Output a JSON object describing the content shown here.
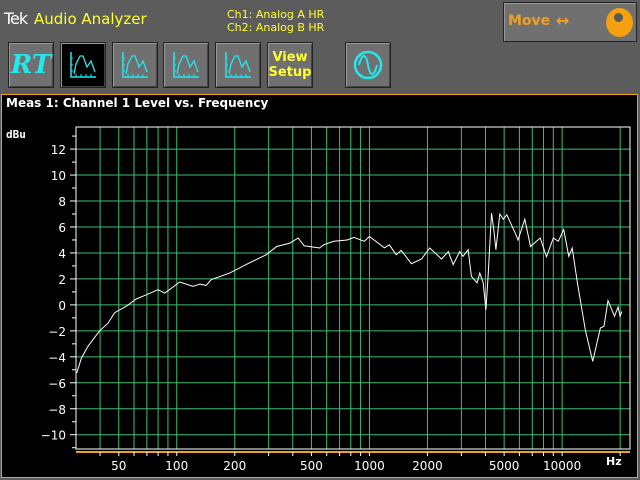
{
  "header": {
    "brand": "Tek",
    "app_name": "Audio Analyzer",
    "channels": [
      "Ch1: Analog A HR",
      "Ch2: Analog B HR"
    ]
  },
  "toolbar": {
    "buttons": [
      {
        "label": "RT",
        "icon": "realtime-icon"
      },
      {
        "icon": "graph-icon",
        "selected": true
      },
      {
        "icon": "graph-icon",
        "selected": false
      },
      {
        "icon": "graph-icon",
        "selected": false
      },
      {
        "icon": "graph-icon",
        "selected": false
      },
      {
        "label_line1": "View",
        "label_line2": "Setup"
      },
      {
        "icon": "sine-wave-icon"
      }
    ],
    "move": {
      "label": "Move",
      "arrows": "↔",
      "icon": "knob-icon"
    }
  },
  "colors": {
    "accent": "#f0a020",
    "grid": "#3fbf6f",
    "trace": "#ffffff",
    "cyan": "#22e8ee",
    "yellow": "#ffff33"
  },
  "measurement": {
    "title": "Meas 1: Channel 1 Level vs. Frequency"
  },
  "chart_data": {
    "type": "line",
    "title": "",
    "ylabel": "dBu",
    "xlabel": "Hz",
    "xscale": "log",
    "xlim": [
      30,
      22500
    ],
    "ylim": [
      -11.1,
      13.7
    ],
    "grid": true,
    "x_tick_labels": [
      50,
      100,
      200,
      500,
      1000,
      2000,
      5000,
      10000
    ],
    "x_gridlines": [
      40,
      50,
      60,
      70,
      80,
      90,
      100,
      200,
      300,
      400,
      500,
      600,
      700,
      800,
      900,
      1000,
      2000,
      3000,
      4000,
      5000,
      6000,
      7000,
      8000,
      9000,
      10000,
      20000
    ],
    "y_tick_labels": [
      12,
      10,
      8,
      6,
      4,
      2,
      0,
      -2,
      -4,
      -6,
      -8,
      -10
    ],
    "series": [
      {
        "x": [
          30.3,
          32,
          34.6,
          37.5,
          39.8,
          44,
          47.6,
          54.8,
          61.7,
          69.5,
          80,
          86.6,
          103.6,
          121.6,
          131.6,
          142,
          151,
          188,
          229,
          291,
          330,
          386,
          427,
          458,
          551,
          578,
          653,
          766,
          832,
          940,
          1000,
          1196,
          1270,
          1377,
          1462,
          1650,
          1863,
          2056,
          2365,
          2565,
          2720,
          2940,
          3060,
          3250,
          3380,
          3620,
          3740,
          3895,
          4020,
          4130,
          4300,
          4420,
          4530,
          4750,
          4950,
          5160,
          5710,
          5900,
          6400,
          6850,
          7690,
          8300,
          9000,
          9550,
          10190,
          10830,
          11280,
          12000,
          13200,
          14400,
          15800,
          16500,
          17300,
          18700,
          19500,
          20000,
          20400
        ],
        "y": [
          -5.25,
          -4.1,
          -3.2,
          -2.5,
          -2.0,
          -1.4,
          -0.6,
          -0.1,
          0.45,
          0.78,
          1.17,
          0.9,
          1.76,
          1.42,
          1.6,
          1.5,
          1.94,
          2.45,
          3.1,
          3.86,
          4.5,
          4.76,
          5.15,
          4.55,
          4.38,
          4.63,
          4.9,
          5.0,
          5.2,
          4.9,
          5.27,
          4.4,
          4.63,
          3.86,
          4.2,
          3.17,
          3.53,
          4.38,
          3.53,
          4.1,
          3.1,
          4.1,
          3.73,
          4.25,
          2.2,
          1.7,
          2.45,
          1.7,
          -0.37,
          2.2,
          7.07,
          5.8,
          4.25,
          7.0,
          6.6,
          6.94,
          5.53,
          5.0,
          6.6,
          4.5,
          5.15,
          3.7,
          5.15,
          4.9,
          5.8,
          3.73,
          4.38,
          1.7,
          -1.96,
          -4.35,
          -1.78,
          -1.65,
          0.33,
          -0.88,
          -0.16,
          -0.88,
          -0.5
        ]
      }
    ]
  }
}
